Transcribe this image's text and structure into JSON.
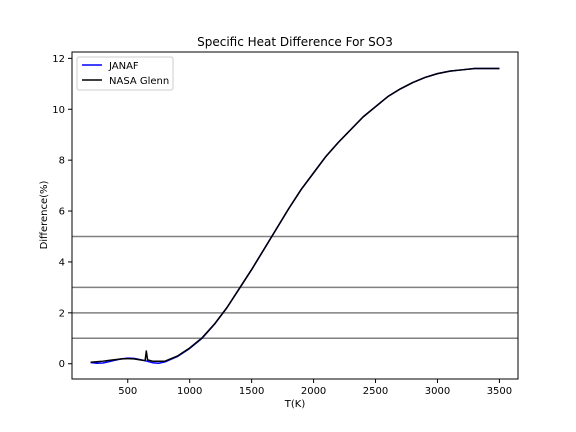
{
  "chart_data": {
    "type": "line",
    "title": "Specific Heat Difference For SO3",
    "xlabel": "T(K)",
    "ylabel": "Difference(%)",
    "xlim": [
      50,
      3650
    ],
    "ylim": [
      -0.6,
      12.25
    ],
    "xticks": [
      500,
      1000,
      1500,
      2000,
      2500,
      3000,
      3500
    ],
    "yticks": [
      0,
      2,
      4,
      6,
      8,
      10,
      12
    ],
    "grid": false,
    "legend_position": "top-left",
    "series": [
      {
        "name": "JANAF",
        "color": "#0000ff",
        "x": [
          200,
          250,
          300,
          350,
          400,
          450,
          500,
          550,
          600,
          640,
          700,
          750,
          800,
          900,
          1000,
          1100,
          1200,
          1300,
          1400,
          1500,
          1600,
          1700,
          1800,
          1900,
          2000,
          2100,
          2200,
          2300,
          2400,
          2500,
          2600,
          2700,
          2800,
          2900,
          3000,
          3100,
          3200,
          3300,
          3400,
          3500
        ],
        "y": [
          0.05,
          0.02,
          0.03,
          0.08,
          0.14,
          0.19,
          0.22,
          0.21,
          0.16,
          0.12,
          0.04,
          0.02,
          0.07,
          0.28,
          0.6,
          1.0,
          1.55,
          2.2,
          2.95,
          3.7,
          4.5,
          5.3,
          6.1,
          6.85,
          7.5,
          8.15,
          8.7,
          9.2,
          9.7,
          10.1,
          10.5,
          10.8,
          11.05,
          11.25,
          11.4,
          11.5,
          11.55,
          11.6,
          11.6,
          11.6
        ]
      },
      {
        "name": "NASA Glenn",
        "color": "#000000",
        "x": [
          200,
          250,
          300,
          350,
          400,
          450,
          500,
          550,
          600,
          640,
          650,
          660,
          700,
          750,
          800,
          900,
          1000,
          1100,
          1200,
          1300,
          1400,
          1500,
          1600,
          1700,
          1800,
          1900,
          2000,
          2100,
          2200,
          2300,
          2400,
          2500,
          2600,
          2700,
          2800,
          2900,
          3000,
          3100,
          3200,
          3300,
          3400,
          3500
        ],
        "y": [
          0.06,
          0.08,
          0.1,
          0.13,
          0.16,
          0.19,
          0.2,
          0.19,
          0.15,
          0.12,
          0.5,
          0.15,
          0.1,
          0.1,
          0.1,
          0.3,
          0.62,
          1.02,
          1.56,
          2.2,
          2.95,
          3.7,
          4.5,
          5.3,
          6.1,
          6.85,
          7.5,
          8.15,
          8.7,
          9.2,
          9.7,
          10.1,
          10.5,
          10.8,
          11.05,
          11.25,
          11.4,
          11.5,
          11.55,
          11.6,
          11.6,
          11.6
        ]
      }
    ],
    "reference_lines": [
      {
        "y": 1,
        "color": "#808080"
      },
      {
        "y": 2,
        "color": "#808080"
      },
      {
        "y": 3,
        "color": "#808080"
      },
      {
        "y": 5,
        "color": "#808080"
      }
    ]
  }
}
